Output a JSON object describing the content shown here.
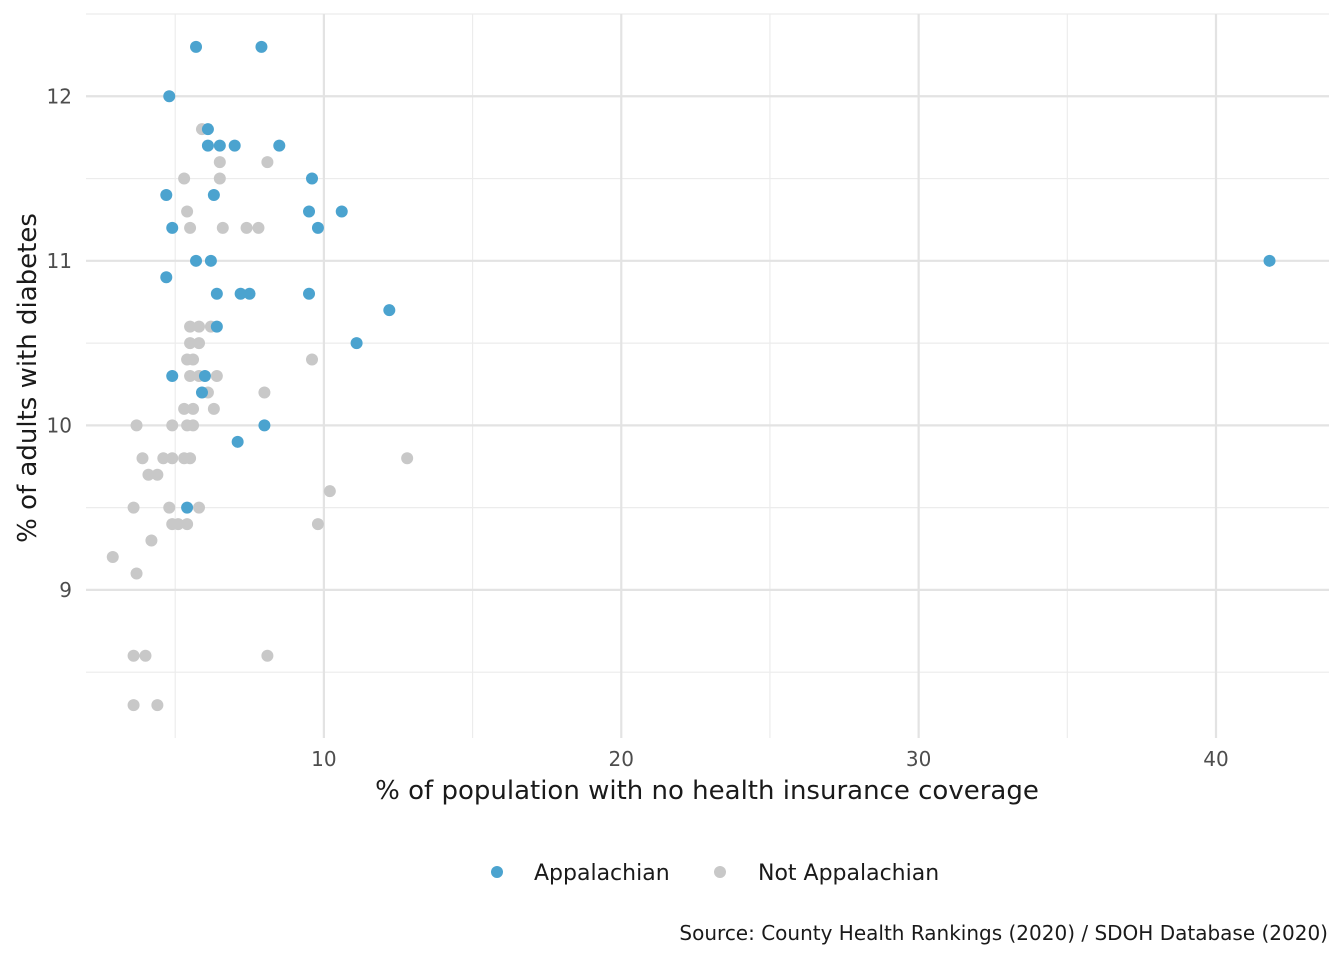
{
  "chart_data": {
    "type": "scatter",
    "title": "",
    "xlabel": "% of population with no health insurance coverage",
    "ylabel": "% of adults with diabetes",
    "caption": "Source: County Health Rankings (2020) / SDOH Database (2020)",
    "xlim": [
      2,
      43.8
    ],
    "ylim": [
      8.1,
      12.5
    ],
    "x_ticks": [
      10,
      20,
      30,
      40
    ],
    "x_tick_labels": [
      "10",
      "20",
      "30",
      "40"
    ],
    "x_minor_ticks": [
      5,
      15,
      25,
      35
    ],
    "y_ticks": [
      9,
      10,
      11,
      12
    ],
    "y_tick_labels": [
      "9",
      "10",
      "11",
      "12"
    ],
    "y_minor_ticks": [
      8.5,
      9.5,
      10.5,
      11.5,
      12.5
    ],
    "grid": true,
    "legend_position": "bottom",
    "series": [
      {
        "name": "Appalachian",
        "color": "#4ba3cf",
        "points": [
          [
            5.7,
            12.3
          ],
          [
            7.9,
            12.3
          ],
          [
            4.8,
            12.0
          ],
          [
            6.1,
            11.8
          ],
          [
            6.1,
            11.7
          ],
          [
            6.5,
            11.7
          ],
          [
            7.0,
            11.7
          ],
          [
            8.5,
            11.7
          ],
          [
            9.6,
            11.5
          ],
          [
            4.7,
            11.4
          ],
          [
            6.3,
            11.4
          ],
          [
            9.5,
            11.3
          ],
          [
            10.6,
            11.3
          ],
          [
            4.9,
            11.2
          ],
          [
            9.8,
            11.2
          ],
          [
            5.7,
            11.0
          ],
          [
            6.2,
            11.0
          ],
          [
            41.8,
            11.0
          ],
          [
            4.7,
            10.9
          ],
          [
            6.4,
            10.8
          ],
          [
            7.2,
            10.8
          ],
          [
            7.5,
            10.8
          ],
          [
            9.5,
            10.8
          ],
          [
            12.2,
            10.7
          ],
          [
            6.4,
            10.6
          ],
          [
            11.1,
            10.5
          ],
          [
            4.9,
            10.3
          ],
          [
            6.0,
            10.3
          ],
          [
            5.9,
            10.2
          ],
          [
            8.0,
            10.0
          ],
          [
            7.1,
            9.9
          ],
          [
            5.4,
            9.5
          ]
        ]
      },
      {
        "name": "Not Appalachian",
        "color": "#c8c8c8",
        "points": [
          [
            5.9,
            11.8
          ],
          [
            6.5,
            11.6
          ],
          [
            8.1,
            11.6
          ],
          [
            5.3,
            11.5
          ],
          [
            6.5,
            11.5
          ],
          [
            5.4,
            11.3
          ],
          [
            5.5,
            11.2
          ],
          [
            6.6,
            11.2
          ],
          [
            7.4,
            11.2
          ],
          [
            7.8,
            11.2
          ],
          [
            5.5,
            10.6
          ],
          [
            5.8,
            10.6
          ],
          [
            6.2,
            10.6
          ],
          [
            5.5,
            10.5
          ],
          [
            5.8,
            10.5
          ],
          [
            5.4,
            10.4
          ],
          [
            5.6,
            10.4
          ],
          [
            9.6,
            10.4
          ],
          [
            5.5,
            10.3
          ],
          [
            5.8,
            10.3
          ],
          [
            6.4,
            10.3
          ],
          [
            6.1,
            10.2
          ],
          [
            8.0,
            10.2
          ],
          [
            5.3,
            10.1
          ],
          [
            5.6,
            10.1
          ],
          [
            6.3,
            10.1
          ],
          [
            3.7,
            10.0
          ],
          [
            4.9,
            10.0
          ],
          [
            5.4,
            10.0
          ],
          [
            5.6,
            10.0
          ],
          [
            3.9,
            9.8
          ],
          [
            4.6,
            9.8
          ],
          [
            4.9,
            9.8
          ],
          [
            5.3,
            9.8
          ],
          [
            5.5,
            9.8
          ],
          [
            12.8,
            9.8
          ],
          [
            4.1,
            9.7
          ],
          [
            4.4,
            9.7
          ],
          [
            10.2,
            9.6
          ],
          [
            3.6,
            9.5
          ],
          [
            4.8,
            9.5
          ],
          [
            5.8,
            9.5
          ],
          [
            4.9,
            9.4
          ],
          [
            5.1,
            9.4
          ],
          [
            5.4,
            9.4
          ],
          [
            9.8,
            9.4
          ],
          [
            4.2,
            9.3
          ],
          [
            2.9,
            9.2
          ],
          [
            3.7,
            9.1
          ],
          [
            3.6,
            8.6
          ],
          [
            4.0,
            8.6
          ],
          [
            8.1,
            8.6
          ],
          [
            3.6,
            8.3
          ],
          [
            4.4,
            8.3
          ]
        ]
      }
    ]
  }
}
